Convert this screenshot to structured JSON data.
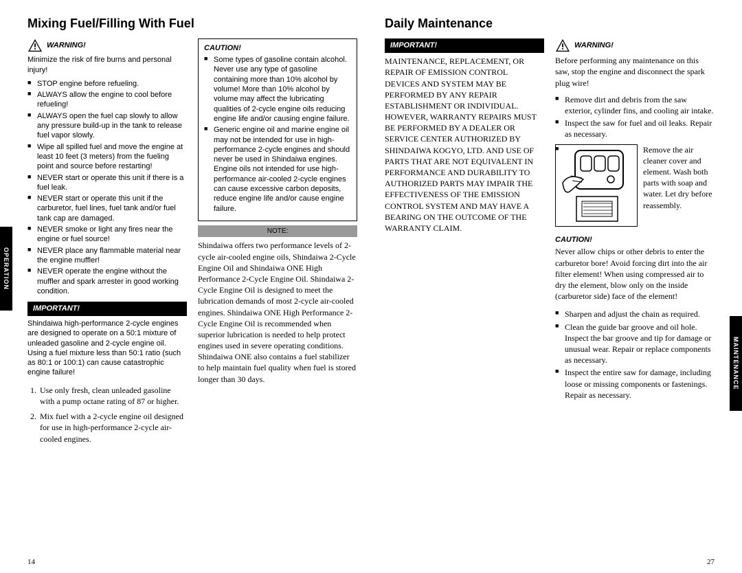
{
  "leftPage": {
    "title": "Mixing Fuel/Filling With Fuel",
    "sideTab": "OPERATION",
    "pageNumber": "14",
    "warningLabel": "WARNING!",
    "warningIntro": "Minimize the risk of fire burns and personal injury!",
    "warningItems": [
      "STOP engine before refueling.",
      "ALWAYS allow the engine to cool before refueling!",
      "ALWAYS open the fuel cap slowly to allow any pressure build-up in the tank to release fuel vapor slowly.",
      "Wipe all spilled fuel and move the engine at least 10 feet (3 meters) from the fueling point and source before restarting!",
      "NEVER start or operate this unit if there is a fuel leak.",
      "NEVER start or operate this unit if the carburetor, fuel lines, fuel tank and/or fuel tank cap are damaged.",
      "NEVER smoke or light any fires near the engine or fuel source!",
      "NEVER place any flammable material near the engine muffler!",
      "NEVER operate the engine without the muffler and spark arrester in good working condition."
    ],
    "importantLabel": "IMPORTANT!",
    "importantText": "Shindaiwa high-performance 2-cycle engines are designed to operate on a 50:1 mixture of unleaded gasoline and 2-cycle engine oil. Using a fuel mixture less than 50:1 ratio (such as 80:1 or 100:1) can cause catastrophic engine failure!",
    "steps": [
      "Use only fresh, clean unleaded gasoline with a pump octane rating of 87 or higher.",
      "Mix fuel with a 2-cycle engine oil designed for use in high-performance 2-cycle air-cooled engines."
    ],
    "cautionLabel": "CAUTION!",
    "cautionItems": [
      "Some types of gasoline contain alcohol. Never use any type of gasoline containing more than 10% alcohol by volume! More than 10% alcohol by volume may affect the lubricating qualities of 2-cycle engine oils reducing engine life and/or causing engine failure.",
      "Generic engine oil and marine engine oil may not be intended for use in high-performance 2-cycle engines and should never be used in Shindaiwa engines. Engine oils not intended for use high-performance air-cooled 2-cycle engines can cause excessive carbon deposits, reduce engine life and/or cause engine failure."
    ],
    "noteLabel": "NOTE:",
    "noteText": "Shindaiwa offers two performance levels of 2-cycle air-cooled engine oils, Shindaiwa 2-Cycle Engine Oil and Shindaiwa ONE High Performance 2-Cycle Engine Oil. Shindaiwa 2-Cycle Engine Oil is designed to meet the lubrication demands of most 2-cycle air-cooled engines. Shindaiwa ONE High Performance 2-Cycle Engine Oil is recommended when superior lubrication is needed to help protect engines used in severe operating conditions. Shindaiwa ONE also contains a fuel stabilizer to help maintain fuel quality when fuel is stored longer than 30 days."
  },
  "rightPage": {
    "title": "Daily Maintenance",
    "sideTab": "MAINTENANCE",
    "pageNumber": "27",
    "importantLabel": "IMPORTANT!",
    "importantText": "MAINTENANCE, REPLACEMENT, OR REPAIR OF EMISSION CONTROL DEVICES AND SYSTEM MAY BE PERFORMED BY ANY REPAIR ESTABLISHMENT OR INDIVIDUAL. HOWEVER, WARRANTY REPAIRS MUST BE PERFORMED BY A DEALER OR SERVICE CENTER AUTHORIZED BY SHINDAIWA KOGYO, LTD. AND USE OF PARTS THAT ARE NOT EQUIVALENT IN PERFORMANCE AND DURABILITY TO AUTHORIZED PARTS MAY IMPAIR THE EFFECTIVENESS OF THE EMISSION CONTROL SYSTEM AND MAY HAVE A BEARING ON THE OUTCOME OF THE WARRANTY CLAIM.",
    "warningLabel": "WARNING!",
    "warningText": "Before performing any maintenance on this saw, stop the engine and disconnect the spark plug wire!",
    "preItems": [
      "Remove dirt and debris from the saw exterior, cylinder fins, and cooling air intake.",
      "Inspect the saw for fuel and oil leaks. Repair as necessary."
    ],
    "airText": "Remove the air cleaner cover and element. Wash both parts with soap and water. Let dry before reassembly.",
    "cautionLabel": "CAUTION!",
    "cautionText": "Never allow chips or other debris to enter the carburetor bore! Avoid forcing dirt into the air filter element! When using compressed air to dry the element, blow only on the inside (carburetor side) face of the element!",
    "postItems": [
      "Sharpen and adjust the chain as required.",
      "Clean the guide bar groove and oil hole. Inspect the bar groove and tip for damage or unusual wear. Repair or replace components as necessary.",
      "Inspect the entire saw for damage, including loose or missing components or fastenings. Repair as necessary."
    ]
  }
}
